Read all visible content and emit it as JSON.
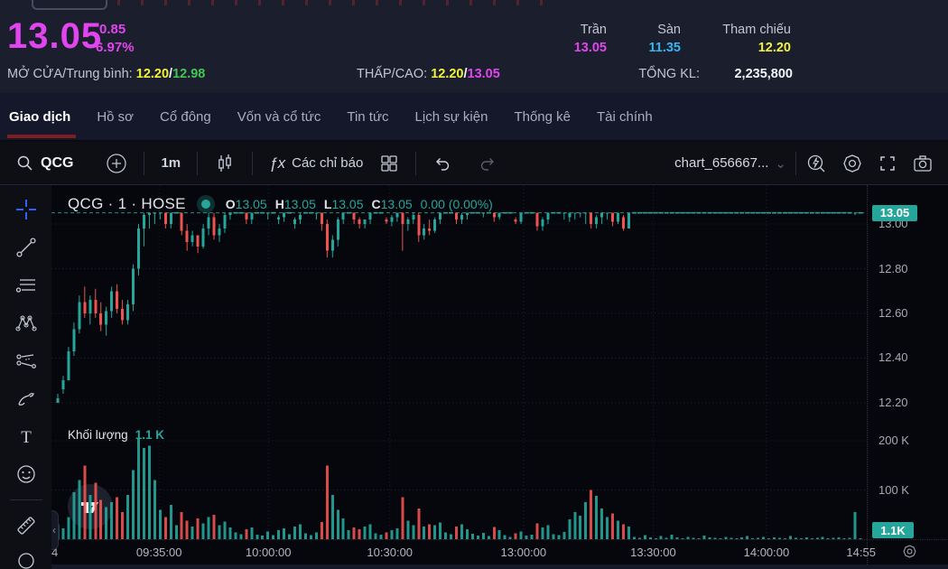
{
  "header": {
    "price": "13.05",
    "change": "0.85",
    "change_pct": "6.97%",
    "open_avg": {
      "label": "MỞ CỬA/Trung bình:",
      "open": "12.20",
      "sep": "/",
      "avg": "12.98"
    },
    "low_high": {
      "label": "THẤP/CAO:",
      "low": "12.20",
      "sep": "/",
      "high": "13.05"
    },
    "ceiling": {
      "label": "Trần",
      "value": "13.05"
    },
    "floor": {
      "label": "Sàn",
      "value": "11.35"
    },
    "reference": {
      "label": "Tham chiếu",
      "value": "12.20"
    },
    "total_volume": {
      "label": "TỔNG KL:",
      "value": "2,235,800"
    }
  },
  "tabs": {
    "active": 0,
    "items": [
      "Giao dịch",
      "Hồ sơ",
      "Cổ đông",
      "Vốn và cổ tức",
      "Tin tức",
      "Lịch sự kiện",
      "Thống kê",
      "Tài chính"
    ]
  },
  "toolbar": {
    "symbol": "QCG",
    "interval": "1m",
    "fx_label": "ƒx",
    "indicators_label": "Các chỉ báo",
    "chart_name": "chart_656667...",
    "chevron": "⌄"
  },
  "legend": {
    "title": "QCG · 1 · HOSE",
    "o_label": "O",
    "o": "13.05",
    "h_label": "H",
    "h": "13.05",
    "l_label": "L",
    "l": "13.05",
    "c_label": "C",
    "c": "13.05",
    "change": "0.00 (0.00%)"
  },
  "volume_legend": {
    "label": "Khối lượng",
    "value": "1.1 K"
  },
  "axis": {
    "price_badge": "13.05",
    "volume_badge": "1.1K"
  },
  "colors": {
    "up": "#26a69a",
    "down": "#ef5350",
    "ceiling": "#e245f0",
    "floor": "#35b5f2",
    "reference": "#f2f23d",
    "avg": "#46c455",
    "tab_underline": "#7d1f1f"
  },
  "chart_data": {
    "type": "candlestick_with_volume",
    "title": "QCG 1-minute chart, HOSE",
    "price_ticks": [
      {
        "label": "13.00",
        "p": 13.0
      },
      {
        "label": "12.80",
        "p": 12.8
      },
      {
        "label": "12.60",
        "p": 12.6
      },
      {
        "label": "12.40",
        "p": 12.4
      },
      {
        "label": "12.20",
        "p": 12.2
      }
    ],
    "price_view_range": [
      12.131,
      13.174
    ],
    "volume_ticks": [
      {
        "label": "200 K",
        "v": 200
      },
      {
        "label": "100 K",
        "v": 100
      }
    ],
    "volume_view_max_k": 200,
    "last_price": 13.05,
    "last_volume_k": 1.1,
    "time_ticks": [
      {
        "label": "4",
        "f": 0.004
      },
      {
        "label": "09:35:00",
        "f": 0.132
      },
      {
        "label": "10:00:00",
        "f": 0.266
      },
      {
        "label": "10:30:00",
        "f": 0.415
      },
      {
        "label": "13:00:00",
        "f": 0.579
      },
      {
        "label": "13:30:00",
        "f": 0.738
      },
      {
        "label": "14:00:00",
        "f": 0.877
      },
      {
        "label": "14:55",
        "f": 0.993
      }
    ],
    "candles": [
      [
        12.2,
        12.24,
        12.2,
        12.22,
        30
      ],
      [
        12.26,
        12.32,
        12.24,
        12.3,
        22
      ],
      [
        12.3,
        12.45,
        12.3,
        12.43,
        45
      ],
      [
        12.43,
        12.56,
        12.41,
        12.53,
        95
      ],
      [
        12.53,
        12.68,
        12.51,
        12.65,
        120
      ],
      [
        12.65,
        12.72,
        12.58,
        12.6,
        150
      ],
      [
        12.6,
        12.68,
        12.55,
        12.66,
        90
      ],
      [
        12.66,
        12.71,
        12.58,
        12.6,
        115
      ],
      [
        12.6,
        12.65,
        12.52,
        12.55,
        80
      ],
      [
        12.55,
        12.63,
        12.5,
        12.61,
        65
      ],
      [
        12.61,
        12.72,
        12.58,
        12.7,
        75
      ],
      [
        12.7,
        12.73,
        12.6,
        12.62,
        85
      ],
      [
        12.62,
        12.66,
        12.55,
        12.57,
        55
      ],
      [
        12.57,
        12.66,
        12.55,
        12.64,
        90
      ],
      [
        12.64,
        12.82,
        12.61,
        12.8,
        140
      ],
      [
        12.8,
        13.0,
        12.77,
        12.98,
        205
      ],
      [
        12.98,
        13.05,
        12.9,
        13.04,
        185
      ],
      [
        13.04,
        13.05,
        12.98,
        13.05,
        190
      ],
      [
        13.05,
        13.05,
        13.0,
        13.05,
        120
      ],
      [
        13.05,
        13.05,
        13.02,
        13.05,
        60
      ],
      [
        13.05,
        13.05,
        12.98,
        13.0,
        45
      ],
      [
        13.0,
        13.05,
        12.98,
        13.05,
        70
      ],
      [
        13.05,
        13.05,
        13.05,
        13.05,
        28
      ],
      [
        13.05,
        13.05,
        12.95,
        12.97,
        55
      ],
      [
        12.97,
        13.0,
        12.88,
        12.92,
        38
      ],
      [
        12.92,
        12.97,
        12.9,
        12.95,
        26
      ],
      [
        12.95,
        12.95,
        12.87,
        12.9,
        42
      ],
      [
        12.9,
        13.0,
        12.89,
        12.98,
        32
      ],
      [
        12.98,
        13.05,
        12.95,
        13.03,
        45
      ],
      [
        13.03,
        13.05,
        12.93,
        12.95,
        50
      ],
      [
        12.95,
        13.0,
        12.92,
        12.98,
        28
      ],
      [
        12.98,
        13.05,
        12.96,
        13.04,
        36
      ],
      [
        13.04,
        13.05,
        13.02,
        13.05,
        24
      ],
      [
        13.05,
        13.05,
        13.05,
        13.05,
        14
      ],
      [
        13.05,
        13.05,
        13.05,
        13.05,
        10
      ],
      [
        13.05,
        13.05,
        13.0,
        13.02,
        20
      ],
      [
        13.02,
        13.05,
        13.0,
        13.05,
        24
      ],
      [
        13.05,
        13.05,
        13.05,
        13.05,
        9
      ],
      [
        13.05,
        13.05,
        13.05,
        13.05,
        7
      ],
      [
        13.05,
        13.05,
        13.02,
        13.05,
        16
      ],
      [
        13.05,
        13.05,
        13.05,
        13.05,
        8
      ],
      [
        13.02,
        13.04,
        13.0,
        13.03,
        18
      ],
      [
        13.03,
        13.05,
        13.01,
        13.05,
        22
      ],
      [
        13.05,
        13.05,
        13.05,
        13.05,
        10
      ],
      [
        13.0,
        13.03,
        12.98,
        13.02,
        26
      ],
      [
        13.02,
        13.05,
        13.0,
        13.04,
        30
      ],
      [
        13.05,
        13.05,
        13.05,
        13.05,
        12
      ],
      [
        13.05,
        13.05,
        13.05,
        13.05,
        8
      ],
      [
        13.05,
        13.05,
        13.02,
        13.05,
        14
      ],
      [
        13.05,
        13.05,
        12.97,
        13.0,
        35
      ],
      [
        13.0,
        13.02,
        12.85,
        12.88,
        150
      ],
      [
        12.88,
        12.95,
        12.85,
        12.93,
        90
      ],
      [
        12.93,
        13.03,
        12.9,
        13.02,
        60
      ],
      [
        13.02,
        13.05,
        13.0,
        13.05,
        42
      ],
      [
        13.05,
        13.05,
        13.05,
        13.05,
        18
      ],
      [
        13.05,
        13.05,
        13.0,
        13.02,
        24
      ],
      [
        13.02,
        13.03,
        12.98,
        13.0,
        20
      ],
      [
        13.0,
        13.02,
        12.98,
        13.02,
        26
      ],
      [
        13.02,
        13.05,
        13.0,
        13.05,
        30
      ],
      [
        13.05,
        13.05,
        13.05,
        13.05,
        12
      ],
      [
        13.05,
        13.05,
        13.05,
        13.05,
        9
      ],
      [
        13.02,
        13.03,
        13.0,
        13.01,
        14
      ],
      [
        13.01,
        13.04,
        12.99,
        13.03,
        18
      ],
      [
        13.03,
        13.05,
        13.01,
        13.05,
        22
      ],
      [
        13.05,
        13.05,
        12.88,
        13.0,
        85
      ],
      [
        13.0,
        13.03,
        12.97,
        13.02,
        38
      ],
      [
        13.02,
        13.05,
        13.0,
        13.04,
        28
      ],
      [
        13.04,
        13.05,
        12.92,
        12.95,
        62
      ],
      [
        12.95,
        13.0,
        12.93,
        12.98,
        26
      ],
      [
        12.98,
        13.02,
        12.95,
        12.97,
        30
      ],
      [
        12.97,
        13.03,
        12.96,
        13.02,
        28
      ],
      [
        13.02,
        13.05,
        13.0,
        13.05,
        34
      ],
      [
        13.05,
        13.05,
        13.05,
        13.05,
        14
      ],
      [
        13.05,
        13.05,
        13.05,
        13.05,
        10
      ],
      [
        13.05,
        13.05,
        13.0,
        13.02,
        26
      ],
      [
        13.02,
        13.05,
        13.0,
        13.04,
        30
      ],
      [
        13.04,
        13.05,
        13.02,
        13.05,
        20
      ],
      [
        13.05,
        13.05,
        13.05,
        13.05,
        11
      ],
      [
        13.05,
        13.05,
        13.05,
        13.05,
        7
      ],
      [
        13.05,
        13.05,
        13.03,
        13.05,
        13
      ],
      [
        13.05,
        13.05,
        13.05,
        13.05,
        6
      ],
      [
        13.05,
        13.05,
        13.01,
        13.03,
        25
      ],
      [
        13.03,
        13.05,
        13.02,
        13.05,
        18
      ],
      [
        13.05,
        13.05,
        13.05,
        13.05,
        8
      ],
      [
        13.05,
        13.05,
        13.05,
        13.05,
        5
      ],
      [
        13.02,
        13.03,
        13.0,
        13.01,
        12
      ],
      [
        13.01,
        13.05,
        13.0,
        13.05,
        16
      ],
      [
        13.05,
        13.05,
        13.05,
        13.05,
        7
      ],
      [
        13.05,
        13.05,
        13.05,
        13.05,
        9
      ],
      [
        13.05,
        13.05,
        12.97,
        12.99,
        32
      ],
      [
        12.99,
        13.03,
        12.97,
        13.02,
        24
      ],
      [
        13.02,
        13.05,
        13.0,
        13.05,
        28
      ],
      [
        13.05,
        13.05,
        13.05,
        13.05,
        10
      ],
      [
        13.05,
        13.05,
        13.05,
        13.05,
        8
      ],
      [
        13.05,
        13.05,
        13.02,
        13.05,
        15
      ],
      [
        13.03,
        13.05,
        13.01,
        13.05,
        40
      ],
      [
        13.05,
        13.05,
        13.02,
        13.05,
        55
      ],
      [
        13.05,
        13.05,
        13.03,
        13.05,
        48
      ],
      [
        13.05,
        13.05,
        13.0,
        13.05,
        75
      ],
      [
        13.05,
        13.05,
        12.98,
        13.0,
        100
      ],
      [
        13.0,
        13.04,
        12.98,
        13.03,
        88
      ],
      [
        13.03,
        13.05,
        13.0,
        13.05,
        62
      ],
      [
        13.05,
        13.05,
        13.02,
        13.05,
        45
      ],
      [
        13.05,
        13.05,
        12.99,
        13.01,
        52
      ],
      [
        13.01,
        13.05,
        13.0,
        13.05,
        38
      ],
      [
        13.03,
        13.04,
        12.97,
        12.98,
        30
      ],
      [
        12.98,
        13.05,
        12.98,
        13.05,
        26
      ],
      [
        13.05,
        13.05,
        13.05,
        13.05,
        5
      ],
      [
        13.05,
        13.05,
        13.05,
        13.05,
        3
      ],
      [
        13.05,
        13.05,
        13.05,
        13.05,
        8
      ],
      [
        13.05,
        13.05,
        13.05,
        13.05,
        4
      ],
      [
        13.05,
        13.05,
        13.05,
        13.05,
        2
      ],
      [
        13.05,
        13.05,
        13.05,
        13.05,
        6
      ],
      [
        13.05,
        13.05,
        13.05,
        13.05,
        3
      ],
      [
        13.05,
        13.05,
        13.05,
        13.05,
        9
      ],
      [
        13.05,
        13.05,
        13.05,
        13.05,
        4
      ],
      [
        13.05,
        13.05,
        13.05,
        13.05,
        2
      ],
      [
        13.05,
        13.05,
        13.05,
        13.05,
        5
      ],
      [
        13.05,
        13.05,
        13.05,
        13.05,
        3
      ],
      [
        13.05,
        13.05,
        13.05,
        13.05,
        2
      ],
      [
        13.05,
        13.05,
        13.05,
        13.05,
        7
      ],
      [
        13.05,
        13.05,
        13.05,
        13.05,
        4
      ],
      [
        13.05,
        13.05,
        13.05,
        13.05,
        3
      ],
      [
        13.05,
        13.05,
        13.05,
        13.05,
        2
      ],
      [
        13.05,
        13.05,
        13.05,
        13.05,
        5
      ],
      [
        13.05,
        13.05,
        13.05,
        13.05,
        3
      ],
      [
        13.05,
        13.05,
        13.05,
        13.05,
        2
      ],
      [
        13.05,
        13.05,
        13.05,
        13.05,
        4
      ],
      [
        13.05,
        13.05,
        13.05,
        13.05,
        6
      ],
      [
        13.05,
        13.05,
        13.05,
        13.05,
        2
      ],
      [
        13.05,
        13.05,
        13.05,
        13.05,
        3
      ],
      [
        13.05,
        13.05,
        13.05,
        13.05,
        5
      ],
      [
        13.05,
        13.05,
        13.05,
        13.05,
        2
      ],
      [
        13.05,
        13.05,
        13.05,
        13.05,
        4
      ],
      [
        13.05,
        13.05,
        13.05,
        13.05,
        3
      ],
      [
        13.05,
        13.05,
        13.05,
        13.05,
        2
      ],
      [
        13.05,
        13.05,
        13.05,
        13.05,
        6
      ],
      [
        13.05,
        13.05,
        13.05,
        13.05,
        3
      ],
      [
        13.05,
        13.05,
        13.05,
        13.05,
        2
      ],
      [
        13.05,
        13.05,
        13.05,
        13.05,
        4
      ],
      [
        13.05,
        13.05,
        13.05,
        13.05,
        2
      ],
      [
        13.05,
        13.05,
        13.05,
        13.05,
        3
      ],
      [
        13.05,
        13.05,
        13.05,
        13.05,
        5
      ],
      [
        13.05,
        13.05,
        13.05,
        13.05,
        2
      ],
      [
        13.05,
        13.05,
        13.05,
        13.05,
        3
      ],
      [
        13.05,
        13.05,
        13.05,
        13.05,
        4
      ],
      [
        13.05,
        13.05,
        13.05,
        13.05,
        2
      ],
      [
        13.05,
        13.05,
        13.05,
        13.05,
        3
      ],
      [
        13.05,
        13.05,
        13.04,
        13.05,
        55
      ],
      [
        13.05,
        13.05,
        13.05,
        13.05,
        1.1
      ]
    ]
  }
}
